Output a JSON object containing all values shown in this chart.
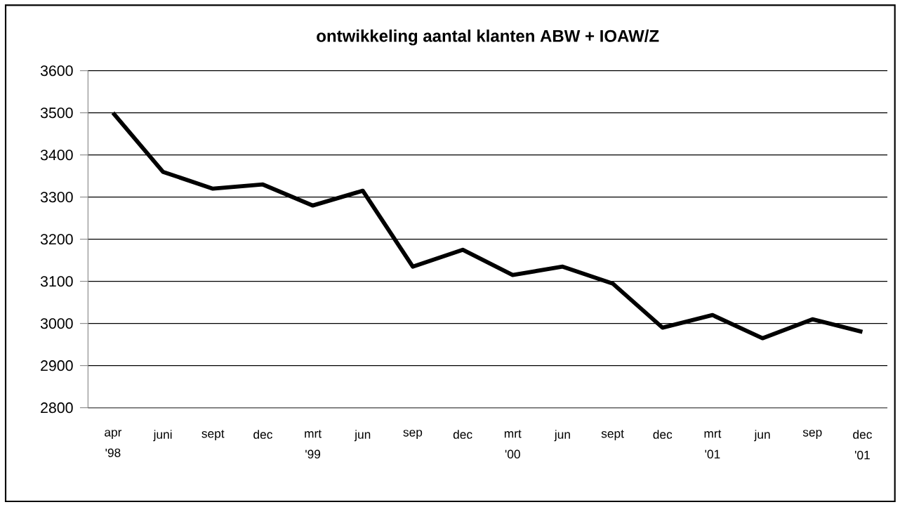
{
  "chart_data": {
    "type": "line",
    "title": "ontwikkeling aantal klanten  ABW + IOAW/Z",
    "categories": [
      "apr '98",
      "juni",
      "sept",
      "dec",
      "mrt '99",
      "jun",
      "sep",
      "dec",
      "mrt '00",
      "jun",
      "sept",
      "dec",
      "mrt '01",
      "jun",
      "sep",
      "dec '01"
    ],
    "values": [
      3500,
      3360,
      3320,
      3330,
      3280,
      3315,
      3135,
      3175,
      3115,
      3135,
      3095,
      2990,
      3020,
      2965,
      3010,
      2980
    ],
    "color": "#000000",
    "ylim": [
      2800,
      3600
    ],
    "yticks": [
      2800,
      2900,
      3000,
      3100,
      3200,
      3300,
      3400,
      3500,
      3600
    ],
    "grid": "y",
    "marker": "none",
    "line_style": "solid"
  }
}
